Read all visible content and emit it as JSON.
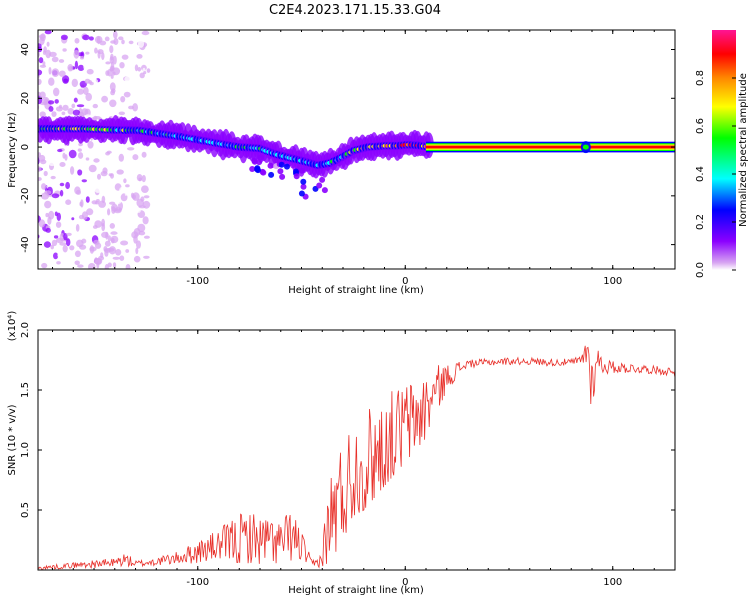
{
  "title": "C2E4.2023.171.15.33.G04",
  "colors": {
    "snr_line": "#e8302a",
    "ridge": "#e8304a",
    "axis": "#000000",
    "cmap": [
      "#ffffff",
      "#d8a6f2",
      "#8b00ff",
      "#0000ff",
      "#00ffff",
      "#00ff00",
      "#ffff00",
      "#ff8800",
      "#ff0000",
      "#ff1493"
    ]
  },
  "chart_data": [
    {
      "type": "heatmap",
      "title": "C2E4.2023.171.15.33.G04",
      "xlabel": "Height of straight line (km)",
      "ylabel": "Frequency (Hz)",
      "xlim": [
        -177,
        130
      ],
      "ylim": [
        -50,
        48
      ],
      "xticks": [
        -100,
        0,
        100
      ],
      "xtick_labels": [
        "-100",
        "0",
        "100"
      ],
      "yticks": [
        -40,
        -20,
        0,
        20,
        40
      ],
      "ytick_labels": [
        "-40",
        "-20",
        "0",
        "20",
        "40"
      ],
      "colorbar": {
        "label": "Normalized spectral amplitude",
        "range": [
          0,
          1
        ],
        "ticks": [
          0.0,
          0.2,
          0.4,
          0.6,
          0.8
        ],
        "tick_labels": [
          "0.0",
          "0.2",
          "0.4",
          "0.6",
          "0.8"
        ]
      },
      "ridge": {
        "x": [
          -170,
          -155,
          -140,
          -128,
          -118,
          -110,
          -100,
          -90,
          -80,
          -70,
          -62,
          -55,
          -48,
          -42,
          -36,
          -30,
          -25,
          -18,
          -10,
          -4,
          2,
          8,
          12,
          20,
          40,
          60,
          80,
          90,
          100,
          130
        ],
        "y": [
          7.5,
          7.5,
          7.0,
          6.8,
          5.5,
          4.5,
          3.0,
          1.5,
          0.0,
          -0.5,
          -3.0,
          -4.5,
          -6.0,
          -7.5,
          -6.5,
          -4.0,
          -1.5,
          0.0,
          0.5,
          0.5,
          1.0,
          0.5,
          0.0,
          0.0,
          0.0,
          0.0,
          0.0,
          0.0,
          0.0,
          0.0
        ],
        "amplitude": [
          0.75,
          0.75,
          0.7,
          0.65,
          0.6,
          0.55,
          0.55,
          0.5,
          0.6,
          0.55,
          0.5,
          0.5,
          0.45,
          0.45,
          0.55,
          0.6,
          0.75,
          0.85,
          0.9,
          0.95,
          0.95,
          0.9,
          0.95,
          1,
          1,
          1,
          1,
          0.95,
          1,
          1
        ]
      },
      "grid": false
    },
    {
      "type": "line",
      "xlabel": "Height of straight line (km)",
      "ylabel": "SNR (10 * v/v)",
      "y_scale_note": "(x10⁴)",
      "xlim": [
        -177,
        130
      ],
      "ylim": [
        0,
        20000
      ],
      "xticks": [
        -100,
        0,
        100
      ],
      "xtick_labels": [
        "-100",
        "0",
        "100"
      ],
      "yticks": [
        5000,
        10000,
        15000,
        20000
      ],
      "ytick_labels": [
        "0.5",
        "1.0",
        "1.5",
        "2.0"
      ],
      "series": [
        {
          "x": [
            -177,
            -160,
            -150,
            -140,
            -135,
            -130,
            -120,
            -110,
            -100,
            -95,
            -90,
            -85,
            -80,
            -75,
            -70,
            -65,
            -60,
            -55,
            -50,
            -47,
            -45,
            -42,
            -40,
            -38,
            -35,
            -32,
            -30,
            -25,
            -20,
            -15,
            -10,
            -5,
            0,
            5,
            10,
            15,
            20,
            25,
            30,
            40,
            50,
            60,
            70,
            80,
            85,
            88,
            90,
            92,
            95,
            100,
            110,
            120,
            130
          ],
          "y": [
            150,
            400,
            500,
            600,
            900,
            500,
            700,
            1000,
            1500,
            1800,
            2000,
            2300,
            2500,
            2700,
            2400,
            2500,
            2200,
            2800,
            2000,
            1000,
            500,
            600,
            1000,
            3000,
            4500,
            5500,
            6500,
            8000,
            8500,
            9500,
            10000,
            11000,
            12000,
            12500,
            13500,
            15000,
            16000,
            16700,
            17200,
            17300,
            17400,
            17400,
            17300,
            17300,
            17500,
            18500,
            15000,
            17800,
            17000,
            16900,
            16800,
            16700,
            16500
          ],
          "envelope_upper": [
            300,
            600,
            800,
            1000,
            1500,
            800,
            1000,
            1500,
            2500,
            3000,
            3500,
            4200,
            5000,
            5300,
            4800,
            4500,
            4200,
            5500,
            3500,
            1800,
            800,
            1200,
            2500,
            6500,
            10500,
            11500,
            12500,
            13500,
            14500,
            15500,
            16000,
            16500,
            16700,
            16900,
            17000,
            17200,
            17300,
            17400,
            17500,
            17600,
            17700,
            17700,
            17600,
            17600,
            17800,
            19700,
            18500,
            19000,
            17800,
            17400,
            17200,
            17000,
            16900
          ],
          "envelope_lower": [
            0,
            100,
            150,
            200,
            300,
            200,
            300,
            400,
            600,
            700,
            800,
            600,
            400,
            600,
            500,
            400,
            300,
            800,
            600,
            300,
            200,
            200,
            300,
            500,
            1000,
            2000,
            2500,
            4500,
            5000,
            6000,
            7000,
            8000,
            9000,
            10000,
            11000,
            13000,
            15000,
            16000,
            16800,
            17000,
            17100,
            17100,
            17000,
            17000,
            17000,
            16000,
            12800,
            16500,
            16300,
            16400,
            16400,
            16300,
            16100
          ]
        }
      ],
      "grid": false
    }
  ]
}
